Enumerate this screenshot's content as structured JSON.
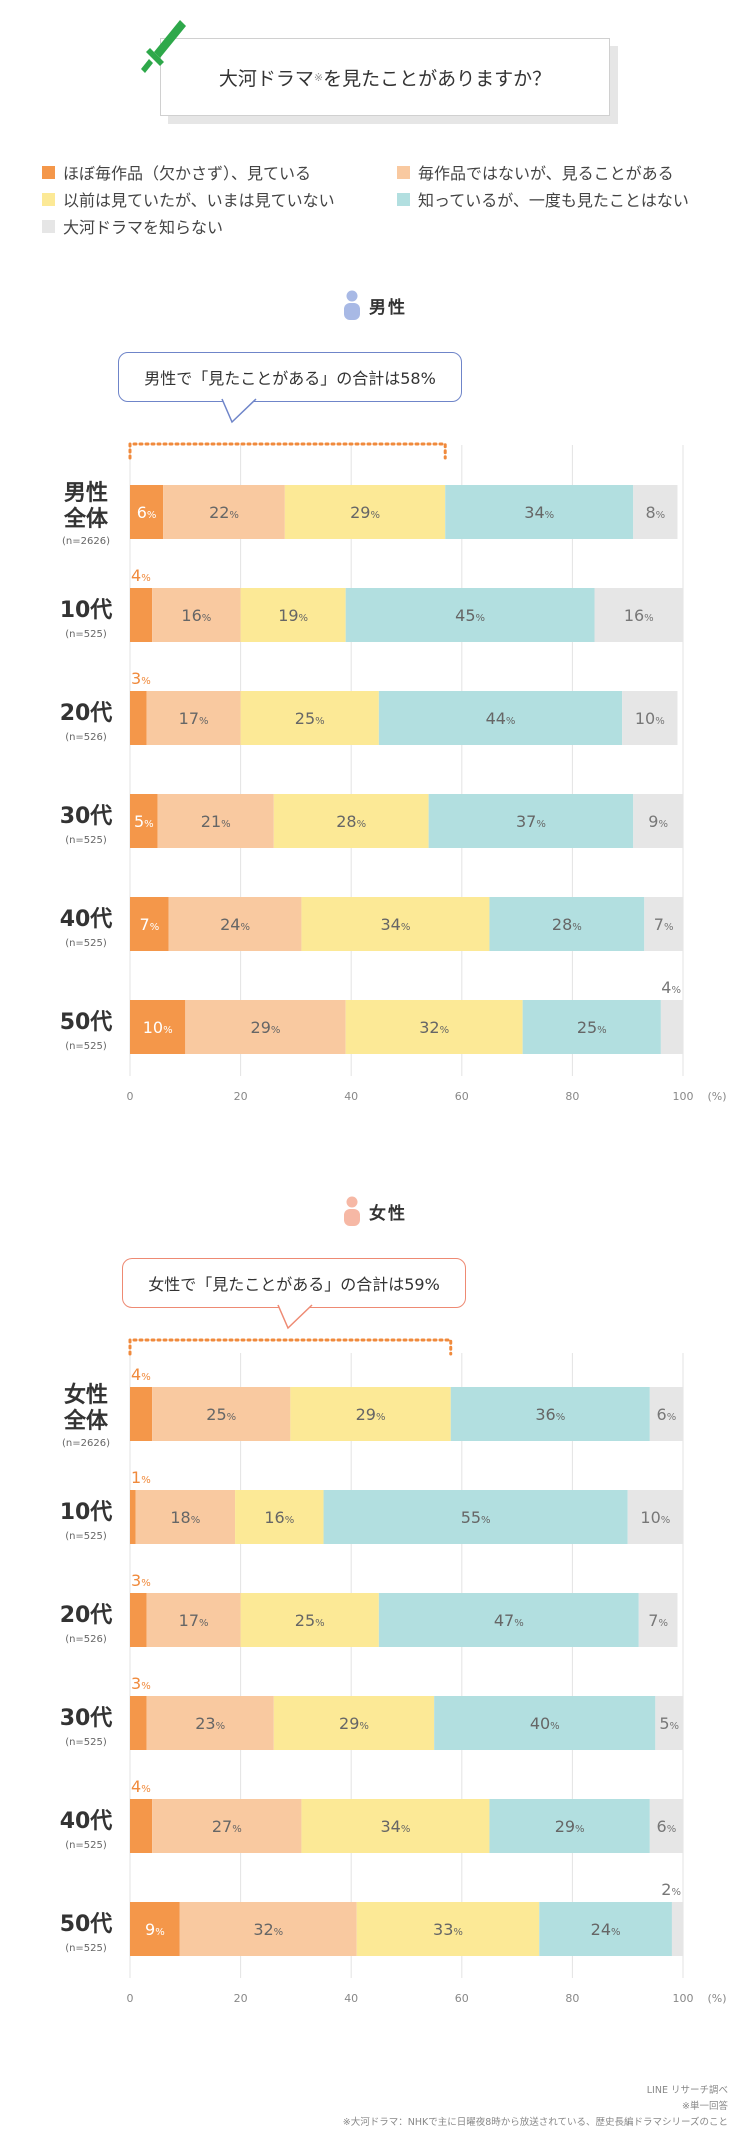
{
  "title": {
    "text": "大河ドラマ",
    "note_mark": "※",
    "suffix": "を見たことがありますか？"
  },
  "legend": [
    {
      "label": "ほぼ毎作品（欠かさず）、見ている",
      "color": "#f4974a"
    },
    {
      "label": "毎作品ではないが、見ることがある",
      "color": "#f9c9a0"
    },
    {
      "label": "以前は見ていたが、いまは見ていない",
      "color": "#fce996"
    },
    {
      "label": "知っているが、一度も見たことはない",
      "color": "#b2dfe0"
    },
    {
      "label": "大河ドラマを知らない",
      "color": "#e6e6e6"
    }
  ],
  "sections": [
    {
      "label": "男性",
      "icon_color": "#a8b9e5",
      "callout": "男性で「見たことがある」の合計は58%",
      "callout_color": "#6f85c9"
    },
    {
      "label": "女性",
      "icon_color": "#f6b8a5",
      "callout": "女性で「見たことがある」の合計は59%",
      "callout_color": "#ee8a73"
    }
  ],
  "chart_data": [
    {
      "type": "bar",
      "orientation": "horizontal",
      "stacked": true,
      "title": "男性",
      "categories": [
        {
          "label": "男性全体",
          "n": "(n=2626)"
        },
        {
          "label": "10代",
          "n": "(n=525)"
        },
        {
          "label": "20代",
          "n": "(n=526)"
        },
        {
          "label": "30代",
          "n": "(n=525)"
        },
        {
          "label": "40代",
          "n": "(n=525)"
        },
        {
          "label": "50代",
          "n": "(n=525)"
        }
      ],
      "series": [
        {
          "name": "ほぼ毎作品（欠かさず）、見ている",
          "color": "#f4974a",
          "values": [
            6,
            4,
            3,
            5,
            7,
            10
          ]
        },
        {
          "name": "毎作品ではないが、見ることがある",
          "color": "#f9c9a0",
          "values": [
            22,
            16,
            17,
            21,
            24,
            29
          ]
        },
        {
          "name": "以前は見ていたが、いまは見ていない",
          "color": "#fce996",
          "values": [
            29,
            19,
            25,
            28,
            34,
            32
          ]
        },
        {
          "name": "知っているが、一度も見たことはない",
          "color": "#b2dfe0",
          "values": [
            34,
            45,
            44,
            37,
            28,
            25
          ]
        },
        {
          "name": "大河ドラマを知らない",
          "color": "#e6e6e6",
          "values": [
            8,
            16,
            10,
            9,
            7,
            4
          ]
        }
      ],
      "xlim": [
        0,
        100
      ],
      "xticks": [
        0,
        20,
        40,
        60,
        80,
        100
      ],
      "xunit": "(%)"
    },
    {
      "type": "bar",
      "orientation": "horizontal",
      "stacked": true,
      "title": "女性",
      "categories": [
        {
          "label": "女性全体",
          "n": "(n=2626)"
        },
        {
          "label": "10代",
          "n": "(n=525)"
        },
        {
          "label": "20代",
          "n": "(n=526)"
        },
        {
          "label": "30代",
          "n": "(n=525)"
        },
        {
          "label": "40代",
          "n": "(n=525)"
        },
        {
          "label": "50代",
          "n": "(n=525)"
        }
      ],
      "series": [
        {
          "name": "ほぼ毎作品（欠かさず）、見ている",
          "color": "#f4974a",
          "values": [
            4,
            1,
            3,
            3,
            4,
            9
          ]
        },
        {
          "name": "毎作品ではないが、見ることがある",
          "color": "#f9c9a0",
          "values": [
            25,
            18,
            17,
            23,
            27,
            32
          ]
        },
        {
          "name": "以前は見ていたが、いまは見ていない",
          "color": "#fce996",
          "values": [
            29,
            16,
            25,
            29,
            34,
            33
          ]
        },
        {
          "name": "知っているが、一度も見たことはない",
          "color": "#b2dfe0",
          "values": [
            36,
            55,
            47,
            40,
            29,
            24
          ]
        },
        {
          "name": "大河ドラマを知らない",
          "color": "#e6e6e6",
          "values": [
            6,
            10,
            7,
            5,
            6,
            2
          ]
        }
      ],
      "xlim": [
        0,
        100
      ],
      "xticks": [
        0,
        20,
        40,
        60,
        80,
        100
      ],
      "xunit": "(%)"
    }
  ],
  "notes": [
    "LINE リサーチ調べ",
    "※単一回答",
    "※大河ドラマ：NHKで主に日曜夜8時から放送されている、歴史長編ドラマシリーズのこと"
  ]
}
